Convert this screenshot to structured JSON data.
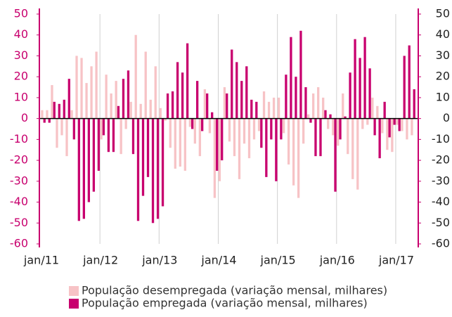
{
  "chart_data": {
    "type": "bar",
    "categories": [
      "jan/11",
      null,
      null,
      null,
      null,
      null,
      null,
      null,
      null,
      null,
      null,
      null,
      "jan/12",
      null,
      null,
      null,
      null,
      null,
      null,
      null,
      null,
      null,
      null,
      null,
      "jan/13",
      null,
      null,
      null,
      null,
      null,
      null,
      null,
      null,
      null,
      null,
      null,
      "jan/14",
      null,
      null,
      null,
      null,
      null,
      null,
      null,
      null,
      null,
      null,
      null,
      "jan/15",
      null,
      null,
      null,
      null,
      null,
      null,
      null,
      null,
      null,
      null,
      null,
      "jan/16",
      null,
      null,
      null,
      null,
      null,
      null,
      null,
      null,
      null,
      null,
      null,
      "jan/17",
      null,
      null,
      null
    ],
    "series": [
      {
        "name": "População desempregada (variação mensal, milhares)",
        "color": "#f7c3c6",
        "values": [
          4,
          4,
          16,
          -14,
          -8,
          -18,
          4,
          30,
          29,
          17,
          25,
          32,
          -10,
          21,
          12,
          18,
          -17,
          -5,
          8,
          40,
          7,
          32,
          9,
          25,
          5,
          -1,
          -14,
          -24,
          -23,
          -25,
          -4,
          -12,
          -18,
          14,
          -7,
          -38,
          -30,
          15,
          -11,
          -18,
          -29,
          -12,
          -19,
          -10,
          -6,
          13,
          8,
          10,
          10,
          -7,
          -22,
          -32,
          -38,
          -12,
          2,
          12,
          15,
          10,
          -5,
          -8,
          -13,
          12,
          -17,
          -29,
          -34,
          -5,
          -3,
          10,
          6,
          -7,
          -15,
          -16,
          -3,
          -6,
          -10,
          -8
        ]
      },
      {
        "name": "População empregada (variação mensal, milhares)",
        "color": "#c8006e",
        "values": [
          -2,
          -2,
          8,
          7,
          9,
          19,
          -10,
          -49,
          -48,
          -40,
          -35,
          -25,
          -8,
          -16,
          -16,
          6,
          19,
          23,
          -17,
          -49,
          -37,
          -28,
          -50,
          -48,
          -42,
          12,
          13,
          27,
          22,
          36,
          -5,
          18,
          -6,
          12,
          3,
          -25,
          -20,
          12,
          33,
          27,
          18,
          25,
          9,
          8,
          -14,
          -28,
          -10,
          -30,
          -10,
          21,
          39,
          20,
          42,
          15,
          -2,
          -18,
          -18,
          4,
          2,
          -35,
          -10,
          1,
          22,
          38,
          29,
          39,
          24,
          -8,
          -19,
          8,
          -9,
          -3,
          -6,
          30,
          35,
          14
        ]
      }
    ],
    "ylim": [
      -60,
      50
    ],
    "yticks": [
      50,
      40,
      30,
      20,
      10,
      0,
      -10,
      -20,
      -30,
      -40,
      -50,
      -60
    ],
    "y2lim": [
      -60,
      50
    ],
    "y2ticks": [
      50,
      40,
      30,
      20,
      10,
      0,
      -10,
      -20,
      -30,
      -40,
      -50,
      -60
    ]
  }
}
